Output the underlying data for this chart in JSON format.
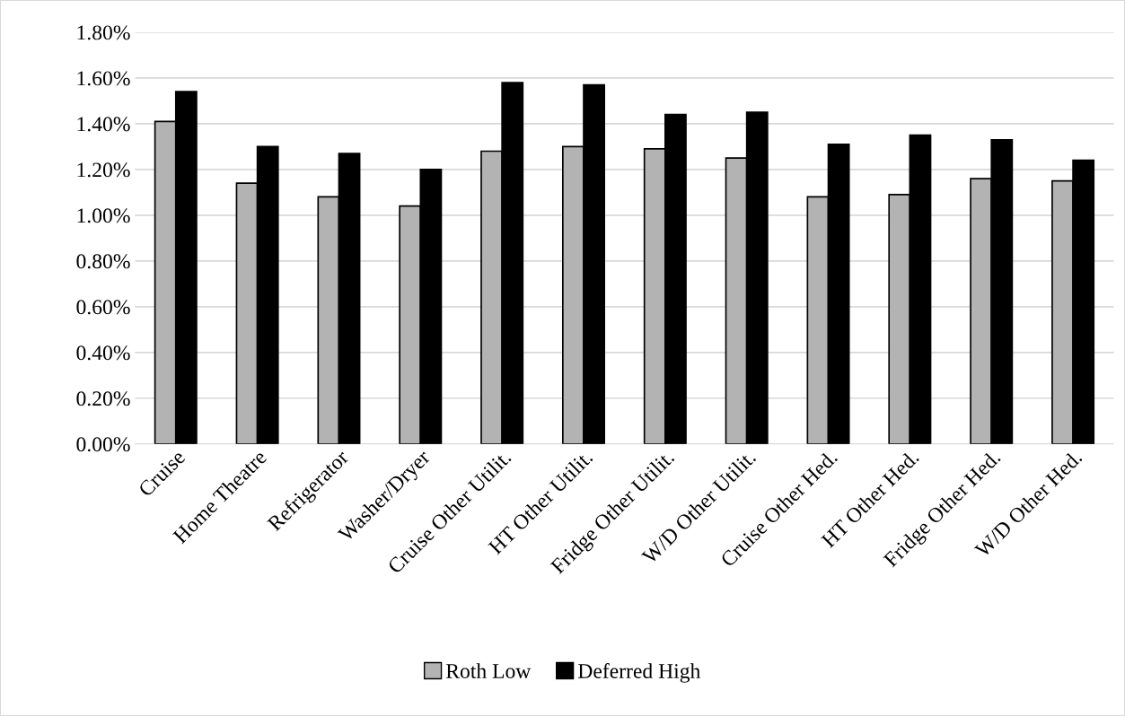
{
  "chart_data": {
    "type": "bar",
    "categories": [
      "Cruise",
      "Home Theatre",
      "Refrigerator",
      "Washer/Dryer",
      "Cruise Other Utilit.",
      "HT Other Utilit.",
      "Fridge Other Utilit.",
      "W/D Other Utilit.",
      "Cruise Other Hed.",
      "HT Other Hed.",
      "Fridge Other Hed.",
      "W/D Other Hed."
    ],
    "series": [
      {
        "name": "Roth Low",
        "color": "#b3b3b3",
        "values": [
          1.41,
          1.14,
          1.08,
          1.04,
          1.28,
          1.3,
          1.29,
          1.25,
          1.08,
          1.09,
          1.16,
          1.15
        ]
      },
      {
        "name": "Deferred High",
        "color": "#000000",
        "values": [
          1.54,
          1.3,
          1.27,
          1.2,
          1.58,
          1.57,
          1.44,
          1.45,
          1.31,
          1.35,
          1.33,
          1.24
        ]
      }
    ],
    "ylim": [
      0,
      1.8
    ],
    "yticks": [
      {
        "value": 0,
        "label": "0.00%"
      },
      {
        "value": 0.2,
        "label": "0.20%"
      },
      {
        "value": 0.4,
        "label": "0.40%"
      },
      {
        "value": 0.6,
        "label": "0.60%"
      },
      {
        "value": 0.8,
        "label": "0.80%"
      },
      {
        "value": 1.0,
        "label": "1.00%"
      },
      {
        "value": 1.2,
        "label": "1.20%"
      },
      {
        "value": 1.4,
        "label": "1.40%"
      },
      {
        "value": 1.6,
        "label": "1.60%"
      },
      {
        "value": 1.8,
        "label": "1.80%"
      }
    ],
    "grid": "y",
    "legend": "bottom"
  }
}
